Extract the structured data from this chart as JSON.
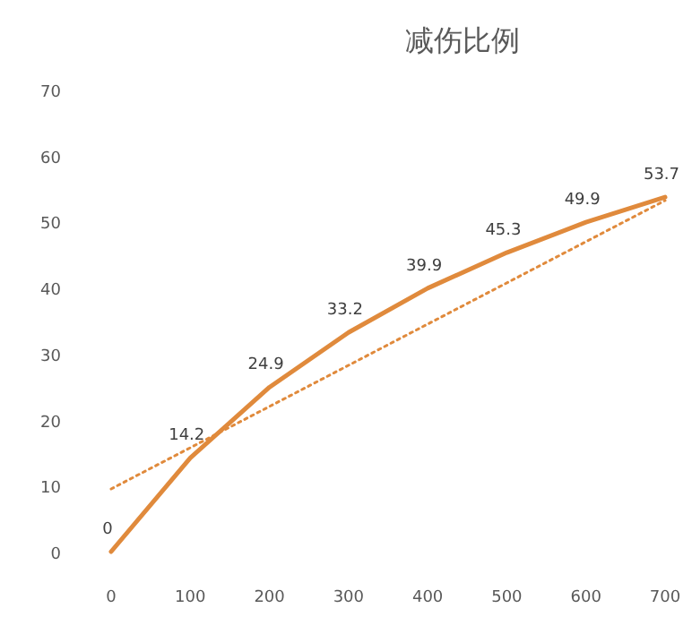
{
  "chart_data": {
    "type": "line",
    "title": "减伤比例",
    "x": [
      0,
      100,
      200,
      300,
      400,
      500,
      600,
      700
    ],
    "series": [
      {
        "color": "#e08a3c",
        "values": [
          0,
          14.2,
          24.9,
          33.2,
          39.9,
          45.3,
          49.9,
          53.7
        ],
        "value_labels": [
          "0",
          "14.2",
          "24.9",
          "33.2",
          "39.9",
          "45.3",
          "49.9",
          "53.7"
        ],
        "line_style": "solid"
      },
      {
        "type": "line",
        "color": "#e08a3c",
        "x": [
          0,
          700
        ],
        "values": [
          9.5,
          53.2
        ],
        "line_style": "dotted"
      }
    ],
    "xlim": [
      0,
      700
    ],
    "ylim": [
      0,
      70
    ],
    "xticks": [
      0,
      100,
      200,
      300,
      400,
      500,
      600,
      700
    ],
    "yticks": [
      0,
      10,
      20,
      30,
      40,
      50,
      60,
      70
    ],
    "grid": false,
    "marker": "none"
  }
}
